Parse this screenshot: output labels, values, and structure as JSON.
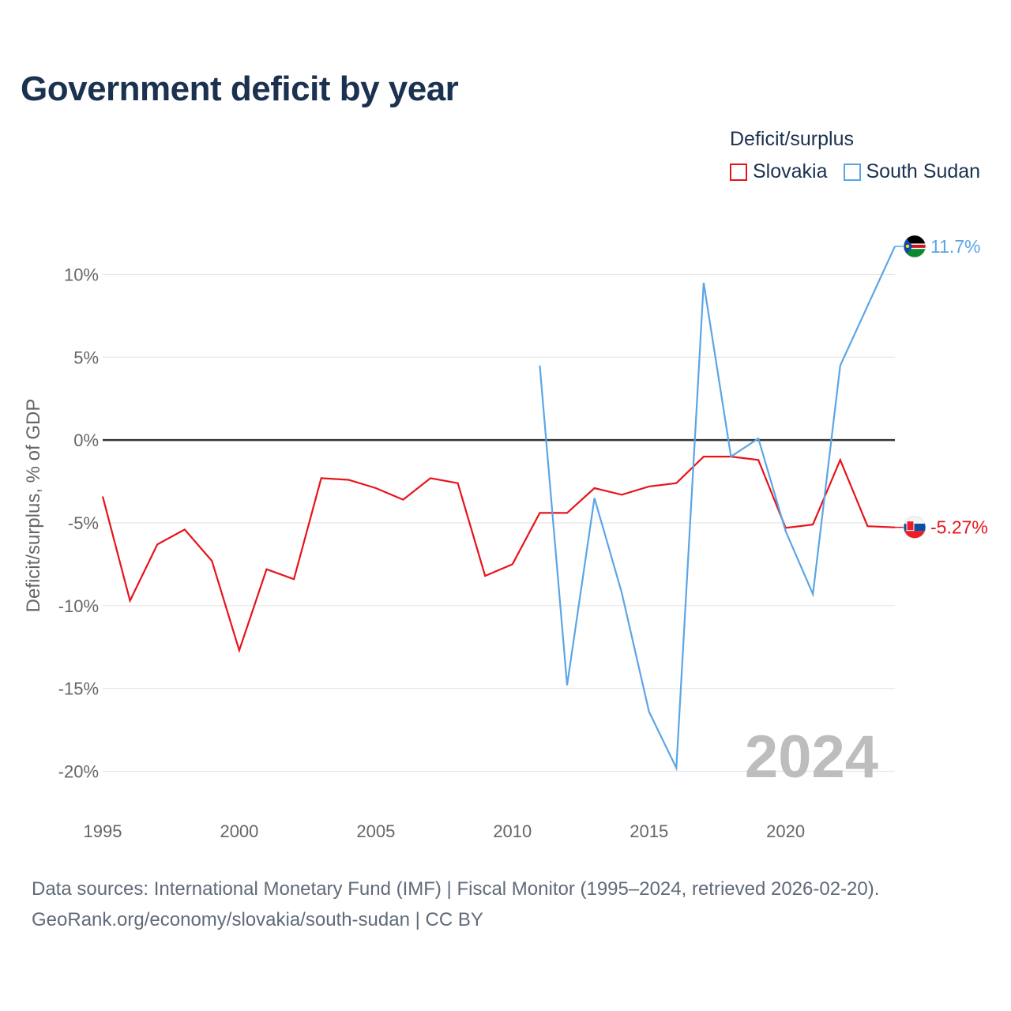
{
  "title": "Government deficit by year",
  "legend": {
    "title": "Deficit/surplus",
    "items": [
      "Slovakia",
      "South Sudan"
    ]
  },
  "footer": {
    "line1": "Data sources: International Monetary Fund (IMF) | Fiscal Monitor (1995–2024, retrieved 2026-02-20).",
    "line2": "GeoRank.org/economy/slovakia/south-sudan | CC BY"
  },
  "colors": {
    "slovakia": "#e8121a",
    "south_sudan": "#5ba5e6",
    "title": "#1b3150"
  },
  "chart_data": {
    "type": "line",
    "title": "Government deficit by year",
    "xlabel": "",
    "ylabel": "Deficit/surplus, % of GDP",
    "xlim": [
      1995,
      2024
    ],
    "ylim": [
      -20,
      10
    ],
    "x_ticks": [
      1995,
      2000,
      2005,
      2010,
      2015,
      2020
    ],
    "x_tick_labels": [
      "1995",
      "2000",
      "2005",
      "2010",
      "2015",
      "2020"
    ],
    "y_ticks": [
      10,
      5,
      0,
      -5,
      -10,
      -15,
      -20
    ],
    "y_tick_labels": [
      "10%",
      "5%",
      "0%",
      "-5%",
      "-10%",
      "-15%",
      "-20%"
    ],
    "grid": true,
    "legend_position": "top-right",
    "year_watermark": "2024",
    "series": [
      {
        "name": "Slovakia",
        "end_label": "-5.27%",
        "x": [
          1995,
          1996,
          1997,
          1998,
          1999,
          2000,
          2001,
          2002,
          2003,
          2004,
          2005,
          2006,
          2007,
          2008,
          2009,
          2010,
          2011,
          2012,
          2013,
          2014,
          2015,
          2016,
          2017,
          2018,
          2019,
          2020,
          2021,
          2022,
          2023,
          2024
        ],
        "values": [
          -3.4,
          -9.7,
          -6.3,
          -5.4,
          -7.3,
          -12.7,
          -7.8,
          -8.4,
          -2.3,
          -2.4,
          -2.9,
          -3.6,
          -2.3,
          -2.6,
          -8.2,
          -7.5,
          -4.4,
          -4.4,
          -2.9,
          -3.3,
          -2.8,
          -2.6,
          -1.0,
          -1.0,
          -1.2,
          -5.3,
          -5.1,
          -1.2,
          -5.2,
          -5.27
        ]
      },
      {
        "name": "South Sudan",
        "end_label": "11.7%",
        "x": [
          2011,
          2012,
          2013,
          2014,
          2015,
          2016,
          2017,
          2018,
          2019,
          2020,
          2021,
          2022,
          2023,
          2024
        ],
        "values": [
          4.5,
          -14.8,
          -3.5,
          -9.2,
          -16.4,
          -19.8,
          9.5,
          -1.0,
          0.1,
          -5.5,
          -9.3,
          4.5,
          8.1,
          11.7
        ]
      }
    ]
  }
}
